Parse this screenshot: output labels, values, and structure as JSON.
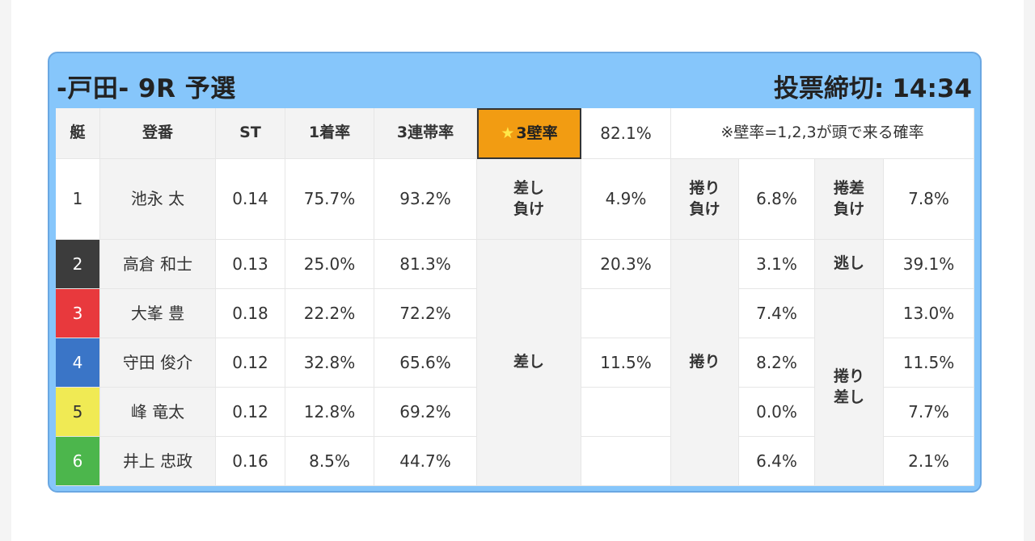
{
  "header": {
    "title": "-戸田- 9R 予選",
    "deadline_label": "投票締切:",
    "deadline_time": "14:34"
  },
  "table": {
    "headers": {
      "lane": "艇",
      "name": "登番",
      "st": "ST",
      "first_rate": "1着率",
      "triple_rate": "3連帯率",
      "wall_rate_label": "3壁率",
      "wall_rate_star": "★",
      "wall_rate_value": "82.1%",
      "note": "※壁率=1,2,3が頭で来る確率"
    },
    "rows": [
      {
        "lane": "1",
        "name": "池永 太",
        "st": "0.14",
        "first": "75.7%",
        "triple": "93.2%"
      },
      {
        "lane": "2",
        "name": "高倉 和士",
        "st": "0.13",
        "first": "25.0%",
        "triple": "81.3%"
      },
      {
        "lane": "3",
        "name": "大峯 豊",
        "st": "0.18",
        "first": "22.2%",
        "triple": "72.2%"
      },
      {
        "lane": "4",
        "name": "守田 俊介",
        "st": "0.12",
        "first": "32.8%",
        "triple": "65.6%"
      },
      {
        "lane": "5",
        "name": "峰 竜太",
        "st": "0.12",
        "first": "12.8%",
        "triple": "69.2%"
      },
      {
        "lane": "6",
        "name": "井上 忠政",
        "st": "0.16",
        "first": "8.5%",
        "triple": "44.7%"
      }
    ],
    "lane_colors": [
      "#ffffff",
      "#3c3c3c",
      "#e8393d",
      "#3a75c7",
      "#f0ea54",
      "#4cb64c"
    ],
    "outcomes": {
      "sashi_make_line1": "差し",
      "sashi_make_line2": "負け",
      "sashi_make_value": "4.9%",
      "makuri_make_line1": "捲り",
      "makuri_make_line2": "負け",
      "makuri_make_value": "6.8%",
      "makurisashi_make_line1": "捲差",
      "makurisashi_make_line2": "負け",
      "makurisashi_make_value": "7.8%",
      "sashi_label": "差し",
      "sashi_values": [
        "20.3%",
        "",
        "11.5%",
        "",
        ""
      ],
      "makuri_label": "捲り",
      "makuri_values": [
        "3.1%",
        "7.4%",
        "8.2%",
        "0.0%",
        "6.4%"
      ],
      "nige_label": "逃し",
      "nige_value": "39.1%",
      "makurisashi_line1": "捲り",
      "makurisashi_line2": "差し",
      "makurisashi_values": [
        "13.0%",
        "11.5%",
        "7.7%",
        "2.1%"
      ]
    }
  }
}
